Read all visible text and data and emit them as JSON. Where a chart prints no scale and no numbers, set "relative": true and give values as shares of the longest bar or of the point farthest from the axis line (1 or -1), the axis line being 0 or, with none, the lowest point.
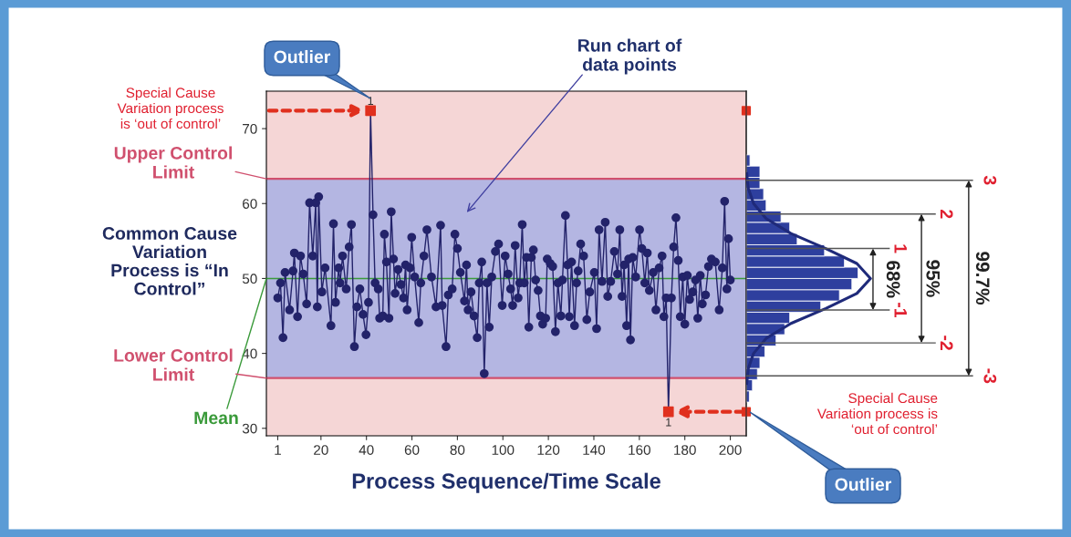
{
  "chart_data": [
    {
      "type": "line",
      "xlabel": "Process Sequence/Time Scale",
      "marker": "circle",
      "grid": false,
      "legend": false,
      "xlim": [
        -4,
        207
      ],
      "xticks": [
        1,
        20,
        40,
        60,
        80,
        100,
        120,
        140,
        160,
        180,
        200
      ],
      "ylim": [
        29,
        75
      ],
      "yticks": [
        30,
        40,
        50,
        60,
        70
      ],
      "series": [
        {
          "color": "#23236a",
          "x": [
            1,
            2.2,
            3.3,
            4.2,
            6.2,
            7.7,
            8.3,
            9.7,
            11,
            12.2,
            13.7,
            15,
            16.4,
            17.7,
            18.4,
            19,
            20.4,
            21.8,
            24.4,
            25.5,
            26.4,
            27.8,
            28.4,
            29.5,
            31.1,
            32.4,
            33.4,
            34.7,
            35.8,
            37.1,
            38.5,
            39.8,
            40.9,
            41.8,
            42.9,
            43.8,
            45.2,
            45.8,
            47.2,
            47.9,
            48.8,
            49.9,
            50.9,
            51.9,
            52.6,
            53.9,
            55.2,
            56.3,
            57.2,
            57.9,
            59.2,
            59.9,
            61.2,
            63,
            63.9,
            65.3,
            66.6,
            68.6,
            70.6,
            72.6,
            73.3,
            75,
            76,
            77.7,
            78.9,
            80,
            81.3,
            83.1,
            84,
            84.7,
            86,
            87.3,
            88.7,
            89.6,
            90.7,
            91.8,
            93,
            94,
            95.1,
            96.7,
            98.1,
            99.7,
            101,
            102.3,
            103.4,
            104.3,
            105.4,
            106.7,
            107.4,
            108.5,
            109.4,
            110.4,
            111.4,
            112.5,
            113.4,
            114.4,
            115.5,
            116.5,
            117.5,
            118.8,
            119.5,
            120.8,
            121.9,
            123.1,
            124.2,
            125.5,
            126.2,
            127.5,
            128.4,
            129.2,
            130.2,
            131.5,
            132.4,
            133.1,
            134.2,
            135.5,
            136.9,
            138.2,
            140.2,
            141.2,
            142.3,
            143.6,
            145,
            146.1,
            147.4,
            149,
            150.4,
            151.4,
            152.4,
            153.3,
            154.4,
            155.3,
            156.1,
            157.1,
            158.4,
            160.1,
            161.1,
            162.4,
            163.5,
            164.4,
            166.1,
            167.3,
            168.7,
            170,
            170.8,
            171.8,
            172.8,
            174.1,
            175.1,
            176.1,
            177.1,
            178,
            179.1,
            180,
            181.1,
            182.1,
            183.5,
            184.7,
            185.7,
            186.8,
            187.7,
            189.1,
            190.4,
            191.7,
            193.4,
            195.1,
            196.5,
            197.5,
            198.5,
            199.2,
            200
          ],
          "values": [
            47.4,
            49.4,
            42.1,
            50.8,
            45.8,
            51,
            53.4,
            44.9,
            53,
            50.6,
            46.6,
            60.1,
            53,
            60.1,
            46.2,
            60.9,
            48.2,
            51.4,
            43.7,
            57.3,
            46.8,
            51.4,
            49.4,
            53,
            48.6,
            54.2,
            57.2,
            40.9,
            46.2,
            48.6,
            45.2,
            42.5,
            46.8,
            72.4,
            58.5,
            49.4,
            48.6,
            44.7,
            45,
            55.9,
            52.2,
            44.7,
            58.9,
            52.6,
            48,
            51.2,
            49.2,
            47.4,
            51.8,
            45.8,
            51.4,
            55.5,
            50.2,
            44.1,
            49.4,
            53,
            56.5,
            50.2,
            46.2,
            57.1,
            46.4,
            40.9,
            47.8,
            48.6,
            55.9,
            54,
            50.8,
            47,
            51.8,
            45.8,
            48.2,
            45,
            42.1,
            49.4,
            52.2,
            37.3,
            49.4,
            43.5,
            50.2,
            53.6,
            54.6,
            46.4,
            53,
            50.6,
            48.6,
            46.4,
            54.4,
            47.4,
            49.4,
            57.2,
            49.4,
            52.8,
            43.5,
            52.8,
            53.8,
            49.8,
            48.4,
            45,
            43.9,
            44.7,
            52.6,
            52,
            51.6,
            42.9,
            49.4,
            45,
            49.8,
            58.4,
            51.8,
            44.9,
            52.2,
            43.7,
            49.4,
            51,
            54.6,
            53,
            44.5,
            48.2,
            50.8,
            43.3,
            56.5,
            49.6,
            57.5,
            47.6,
            49.6,
            53.6,
            50.6,
            56.5,
            47.6,
            51.8,
            43.7,
            52.6,
            41.8,
            52.8,
            50.2,
            56.5,
            54,
            49.4,
            53.4,
            48.4,
            50.8,
            45.8,
            51.4,
            53,
            44.9,
            47.4,
            32.2,
            47.4,
            54.2,
            58.1,
            52.4,
            44.9,
            50.2,
            43.9,
            50.4,
            47.2,
            48.2,
            49.8,
            44.7,
            50.4,
            46.6,
            47.8,
            51.6,
            52.6,
            52.2,
            45.8,
            51.4,
            60.3,
            48.6,
            55.3,
            49.8
          ]
        },
        {
          "type": "scatter",
          "marker": "square",
          "color": "#e0301e",
          "x": [
            41.8,
            172.8
          ],
          "values": [
            72.4,
            32.2
          ]
        }
      ],
      "bands": [
        {
          "axis": "y",
          "from": 63.3,
          "to": 75,
          "color": "#f5d6d6"
        },
        {
          "axis": "y",
          "from": 36.7,
          "to": 63.3,
          "color": "#b4b6e2"
        },
        {
          "axis": "y",
          "from": 29,
          "to": 36.7,
          "color": "#f5d6d6"
        }
      ],
      "ref_lines": [
        {
          "axis": "y",
          "value": 63.3,
          "label": "Upper Control Limit",
          "color": "#d0506e"
        },
        {
          "axis": "y",
          "value": 50,
          "label": "Mean",
          "color": "#3a9a3a"
        },
        {
          "axis": "y",
          "value": 36.7,
          "label": "Lower Control Limit",
          "color": "#d0506e"
        }
      ],
      "annotations": [
        "Outlier",
        "Outlier",
        "Special Cause\nVariation process\nis ‘out of control’",
        "Special Cause\nVariation process is\n‘out of control’",
        "Run chart of\ndata points",
        "Common Cause\nVariation\nProcess is “In\nControl”",
        {
          "text": "1",
          "x": 41.8,
          "y": 72.4
        },
        {
          "text": "1",
          "x": 172.8,
          "y": 32.2
        }
      ]
    },
    {
      "type": "histogram",
      "orientation": "horizontal",
      "relative": true,
      "tick_labels": false,
      "color": "#2e3f9e",
      "ylim": [
        29,
        75
      ],
      "bins": [
        33.5,
        35,
        36.5,
        38,
        39.5,
        41,
        42.5,
        44,
        45.5,
        47,
        48.5,
        50,
        51.5,
        53,
        54.5,
        56,
        57.5,
        59,
        60.5,
        62,
        63.5,
        65,
        66.5
      ],
      "values": [
        0.025,
        0.05,
        0.09,
        0.11,
        0.15,
        0.24,
        0.31,
        0.35,
        0.6,
        0.75,
        0.85,
        0.9,
        0.79,
        0.63,
        0.41,
        0.35,
        0.28,
        0.16,
        0.14,
        0.11,
        0.11,
        0.03
      ],
      "series": [
        {
          "type": "line",
          "color": "#1f2a7a",
          "x": [
            36,
            38,
            40,
            42,
            44,
            46,
            48,
            50,
            52,
            54,
            56,
            58,
            60,
            62,
            64
          ],
          "values": [
            0.004,
            0.017,
            0.059,
            0.16,
            0.36,
            0.64,
            0.89,
            1,
            0.89,
            0.64,
            0.36,
            0.16,
            0.059,
            0.017,
            0.004
          ]
        }
      ],
      "ref_lines": [
        {
          "axis": "y",
          "value": 63.1,
          "color": "#555555"
        },
        {
          "axis": "y",
          "value": 58.6,
          "color": "#555555"
        },
        {
          "axis": "y",
          "value": 54.0,
          "color": "#555555"
        },
        {
          "axis": "y",
          "value": 45.8,
          "color": "#555555"
        },
        {
          "axis": "y",
          "value": 41.4,
          "color": "#555555"
        },
        {
          "axis": "y",
          "value": 37.0,
          "color": "#555555"
        }
      ],
      "annotations": [
        "3",
        "2",
        "1",
        "-1",
        "-2",
        "-3",
        "68%",
        "95%",
        "99.7%"
      ]
    }
  ]
}
